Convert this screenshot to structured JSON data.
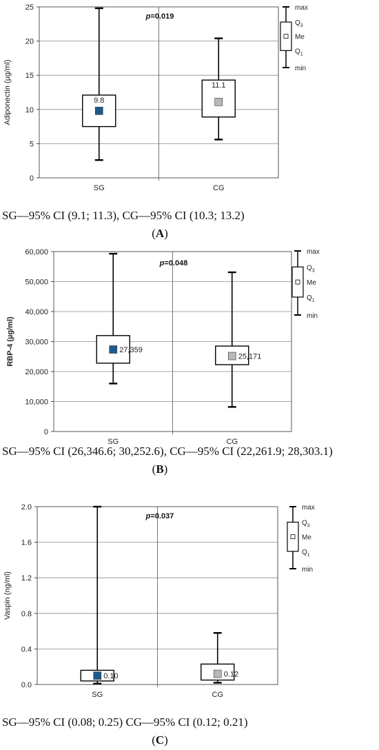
{
  "chart_data": [
    {
      "type": "box",
      "panel_label": "A",
      "ylabel": "Adiponectin (µg/ml)",
      "ylim": [
        0,
        25
      ],
      "yticks": [
        0,
        5,
        10,
        15,
        20,
        25
      ],
      "ytick_labels": [
        "0",
        "5",
        "10",
        "15",
        "20",
        "25"
      ],
      "ylabel_bold": false,
      "categories": [
        "SG",
        "CG"
      ],
      "p_value": "p=0.019",
      "groups": [
        {
          "name": "SG",
          "min": 2.6,
          "q1": 7.5,
          "median": 9.8,
          "q3": 12.1,
          "max": 24.8,
          "median_label": "9.8",
          "color": "#1f5a8c"
        },
        {
          "name": "CG",
          "min": 5.6,
          "q1": 8.9,
          "median": 11.1,
          "q3": 14.3,
          "max": 20.4,
          "median_label": "11.1",
          "color": "#b8b8b8"
        }
      ],
      "legend": {
        "max": "max",
        "q3": "Q",
        "q3_sub": "3",
        "me": "Me",
        "q1": "Q",
        "q1_sub": "1",
        "min": "min"
      },
      "caption": "SG—95% CI (9.1; 11.3), CG—95% CI (10.3; 13.2)"
    },
    {
      "type": "box",
      "panel_label": "B",
      "ylabel": "RBP-4 (µg/ml)",
      "ylim": [
        0,
        60000
      ],
      "yticks": [
        0,
        10000,
        20000,
        30000,
        40000,
        50000,
        60000
      ],
      "ytick_labels": [
        "0",
        "10,000",
        "20,000",
        "30,000",
        "40,000",
        "50,000",
        "60,000"
      ],
      "ylabel_bold": true,
      "categories": [
        "SG",
        "CG"
      ],
      "p_value": "p=0.048",
      "groups": [
        {
          "name": "SG",
          "min": 16000,
          "q1": 22800,
          "median": 27359,
          "q3": 32000,
          "max": 59300,
          "median_label": "27,359",
          "color": "#1f5a8c"
        },
        {
          "name": "CG",
          "min": 8200,
          "q1": 22300,
          "median": 25171,
          "q3": 28500,
          "max": 53100,
          "median_label": "25,171",
          "color": "#b8b8b8"
        }
      ],
      "legend": {
        "max": "max",
        "q3": "Q",
        "q3_sub": "3",
        "me": "Me",
        "q1": "Q",
        "q1_sub": "1",
        "min": "min"
      },
      "caption": "SG—95% CI (26,346.6; 30,252.6), CG—95% CI (22,261.9; 28,303.1)"
    },
    {
      "type": "box",
      "panel_label": "C",
      "ylabel": "Vaspin (ng/ml)",
      "ylim": [
        0,
        2.0
      ],
      "yticks": [
        0,
        0.4,
        0.8,
        1.2,
        1.6,
        2.0
      ],
      "ytick_labels": [
        "0.0",
        "0.4",
        "0.8",
        "1.2",
        "1.6",
        "2.0"
      ],
      "ylabel_bold": false,
      "categories": [
        "SG",
        "CG"
      ],
      "p_value": "p=0.037",
      "groups": [
        {
          "name": "SG",
          "min": 0.01,
          "q1": 0.04,
          "median": 0.1,
          "q3": 0.16,
          "max": 2.0,
          "median_label": "0.10",
          "color": "#1f5a8c"
        },
        {
          "name": "CG",
          "min": 0.02,
          "q1": 0.05,
          "median": 0.12,
          "q3": 0.23,
          "max": 0.58,
          "median_label": "0.12",
          "color": "#b8b8b8"
        }
      ],
      "legend": {
        "max": "max",
        "q3": "Q",
        "q3_sub": "3",
        "me": "Me",
        "q1": "Q",
        "q1_sub": "1",
        "min": "min"
      },
      "caption": "SG—95% CI (0.08; 0.25) CG—95% CI (0.12; 0.21)"
    }
  ]
}
